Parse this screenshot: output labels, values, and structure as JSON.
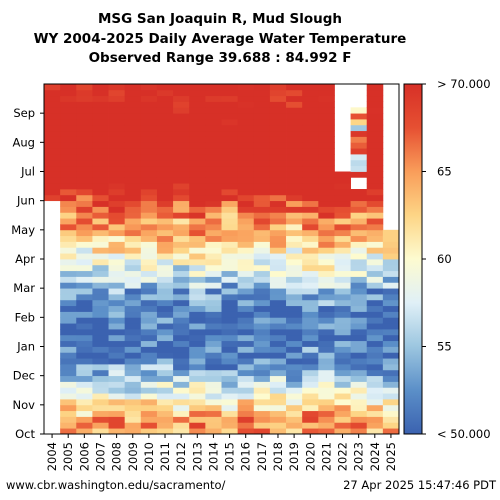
{
  "title_line1": "MSG San Joaquin R, Mud Slough",
  "title_line2": "WY 2004-2025 Daily Average Water Temperature",
  "title_line3": "Observed Range 39.688 : 84.992 F",
  "footer_left": "www.cbr.washington.edu/sacramento/",
  "footer_right": "27 Apr 2025 15:47:46 PDT",
  "colors": {
    "scale": [
      "#3b62b0",
      "#5b8fc8",
      "#9cc6e0",
      "#e0f0f7",
      "#fdfbd0",
      "#fdd586",
      "#f99d5a",
      "#e65032",
      "#d73027"
    ]
  },
  "chart_data": {
    "type": "heatmap",
    "title": "WY 2004-2025 Daily Average Water Temperature",
    "x_categories": [
      "2004",
      "2005",
      "2006",
      "2007",
      "2008",
      "2009",
      "2010",
      "2011",
      "2012",
      "2013",
      "2014",
      "2015",
      "2016",
      "2017",
      "2018",
      "2019",
      "2020",
      "2021",
      "2022",
      "2023",
      "2024",
      "2025"
    ],
    "y_categories": [
      "Oct",
      "Nov",
      "Dec",
      "Jan",
      "Feb",
      "Mar",
      "Apr",
      "May",
      "Jun",
      "Jul",
      "Aug",
      "Sep"
    ],
    "colorbar": {
      "min": 50,
      "max": 70,
      "ticks": [
        "< 50.000",
        "55",
        "60",
        "65",
        "> 70.000"
      ]
    },
    "monthly_typical_F": {
      "Oct": 65,
      "Nov": 58,
      "Dec": 52,
      "Jan": 50,
      "Feb": 52,
      "Mar": 57,
      "Apr": 62,
      "May": 66,
      "Jun": 72,
      "Jul": 76,
      "Aug": 75,
      "Sep": 71
    },
    "year_notes": {
      "2004": "data from Jun only",
      "2022": "missing Jul-Sep",
      "2023": "warm late season with gaps",
      "2025": "data Oct through Apr"
    }
  }
}
